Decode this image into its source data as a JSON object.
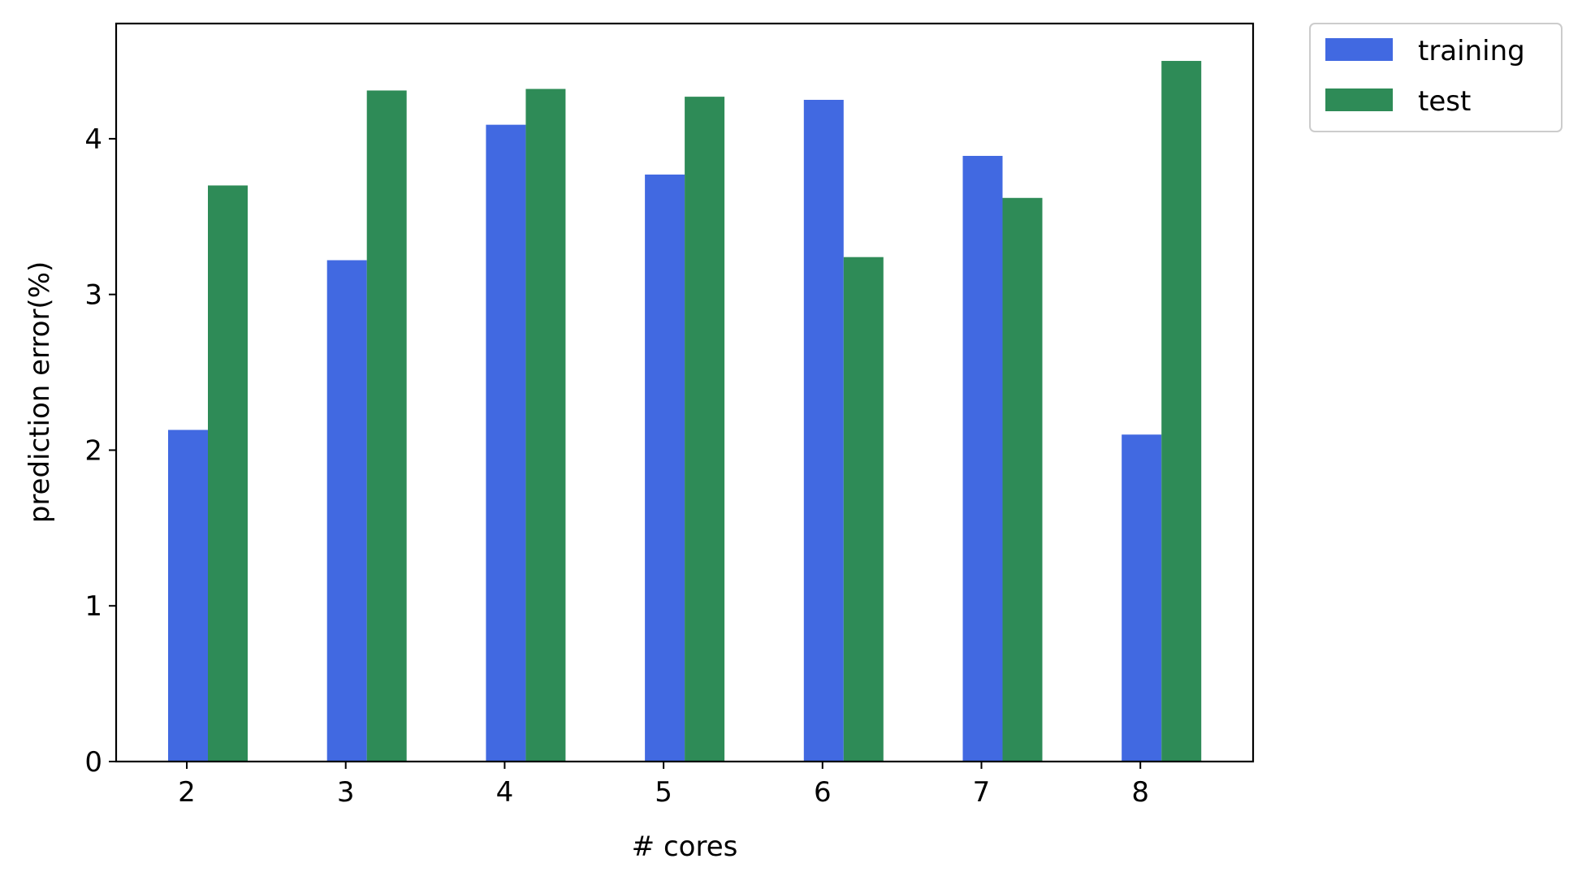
{
  "chart_data": {
    "type": "bar",
    "title": "",
    "xlabel": "# cores",
    "ylabel": "prediction error(%)",
    "categories": [
      "2",
      "3",
      "4",
      "5",
      "6",
      "7",
      "8"
    ],
    "series": [
      {
        "name": "training",
        "color": "#4169e1",
        "values": [
          2.13,
          3.22,
          4.09,
          3.77,
          4.25,
          3.89,
          2.1
        ]
      },
      {
        "name": "test",
        "color": "#2e8b57",
        "values": [
          3.7,
          4.31,
          4.32,
          4.27,
          3.24,
          3.62,
          4.5
        ]
      }
    ],
    "ylim": [
      0,
      4.74
    ],
    "yticks": [
      0,
      1,
      2,
      3,
      4
    ],
    "grid": false,
    "legend_position": "outside top-right"
  }
}
